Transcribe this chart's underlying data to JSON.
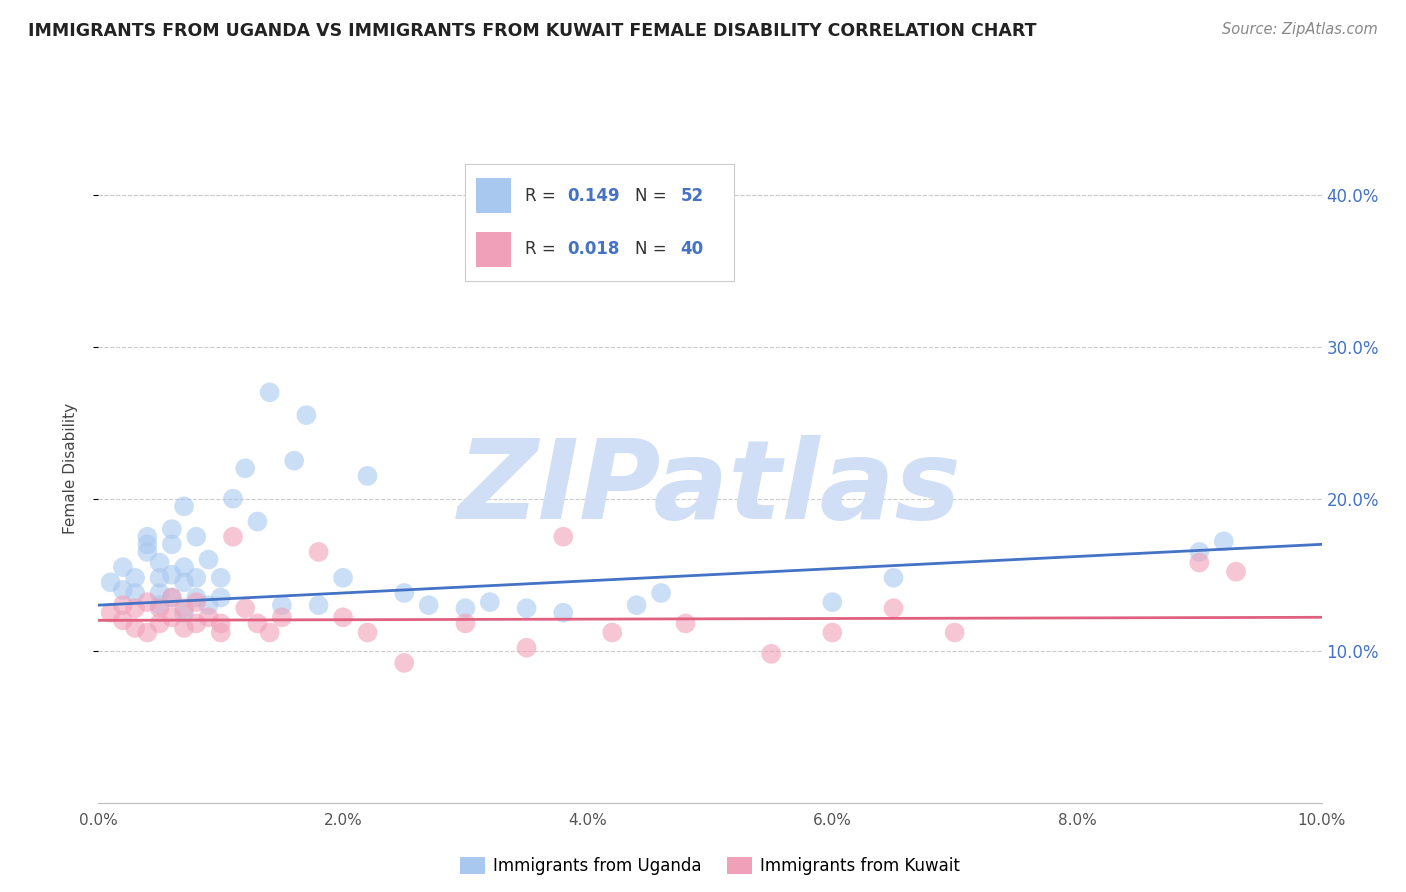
{
  "title": "IMMIGRANTS FROM UGANDA VS IMMIGRANTS FROM KUWAIT FEMALE DISABILITY CORRELATION CHART",
  "source": "Source: ZipAtlas.com",
  "ylabel": "Female Disability",
  "legend_label_blue": "Immigrants from Uganda",
  "legend_label_pink": "Immigrants from Kuwait",
  "xlim": [
    0.0,
    0.1
  ],
  "ylim": [
    0.0,
    0.44
  ],
  "yticks": [
    0.1,
    0.2,
    0.3,
    0.4
  ],
  "xticks": [
    0.0,
    0.02,
    0.04,
    0.06,
    0.08,
    0.1
  ],
  "xtick_labels": [
    "0.0%",
    "2.0%",
    "4.0%",
    "6.0%",
    "8.0%",
    "10.0%"
  ],
  "ytick_labels": [
    "10.0%",
    "20.0%",
    "30.0%",
    "40.0%"
  ],
  "color_blue": "#A8C8F0",
  "color_pink": "#F0A0B8",
  "color_blue_line": "#4472C4",
  "color_pink_line": "#E06080",
  "color_right_axis": "#4472C4",
  "watermark_color": "#D0DFF5",
  "uganda_x": [
    0.001,
    0.002,
    0.002,
    0.003,
    0.003,
    0.004,
    0.004,
    0.004,
    0.005,
    0.005,
    0.005,
    0.005,
    0.006,
    0.006,
    0.006,
    0.006,
    0.007,
    0.007,
    0.007,
    0.007,
    0.008,
    0.008,
    0.008,
    0.009,
    0.009,
    0.01,
    0.01,
    0.011,
    0.012,
    0.013,
    0.014,
    0.015,
    0.016,
    0.017,
    0.018,
    0.02,
    0.022,
    0.025,
    0.027,
    0.03,
    0.032,
    0.035,
    0.038,
    0.04,
    0.044,
    0.046,
    0.06,
    0.065,
    0.09,
    0.092
  ],
  "uganda_y": [
    0.145,
    0.14,
    0.155,
    0.138,
    0.148,
    0.165,
    0.17,
    0.175,
    0.13,
    0.138,
    0.148,
    0.158,
    0.135,
    0.15,
    0.17,
    0.18,
    0.125,
    0.145,
    0.155,
    0.195,
    0.135,
    0.148,
    0.175,
    0.13,
    0.16,
    0.135,
    0.148,
    0.2,
    0.22,
    0.185,
    0.27,
    0.13,
    0.225,
    0.255,
    0.13,
    0.148,
    0.215,
    0.138,
    0.13,
    0.128,
    0.132,
    0.128,
    0.125,
    0.385,
    0.13,
    0.138,
    0.132,
    0.148,
    0.165,
    0.172
  ],
  "kuwait_x": [
    0.001,
    0.002,
    0.002,
    0.003,
    0.003,
    0.004,
    0.004,
    0.005,
    0.005,
    0.006,
    0.006,
    0.007,
    0.007,
    0.008,
    0.008,
    0.009,
    0.01,
    0.01,
    0.011,
    0.012,
    0.013,
    0.014,
    0.015,
    0.018,
    0.02,
    0.022,
    0.025,
    0.03,
    0.035,
    0.038,
    0.042,
    0.048,
    0.055,
    0.06,
    0.065,
    0.07,
    0.09,
    0.093
  ],
  "kuwait_y": [
    0.125,
    0.12,
    0.13,
    0.115,
    0.128,
    0.112,
    0.132,
    0.118,
    0.128,
    0.122,
    0.135,
    0.115,
    0.128,
    0.118,
    0.132,
    0.122,
    0.112,
    0.118,
    0.175,
    0.128,
    0.118,
    0.112,
    0.122,
    0.165,
    0.122,
    0.112,
    0.092,
    0.118,
    0.102,
    0.175,
    0.112,
    0.118,
    0.098,
    0.112,
    0.128,
    0.112,
    0.158,
    0.152
  ],
  "uganda_slope": 0.4,
  "uganda_intercept": 0.13,
  "kuwait_slope": 0.02,
  "kuwait_intercept": 0.12
}
